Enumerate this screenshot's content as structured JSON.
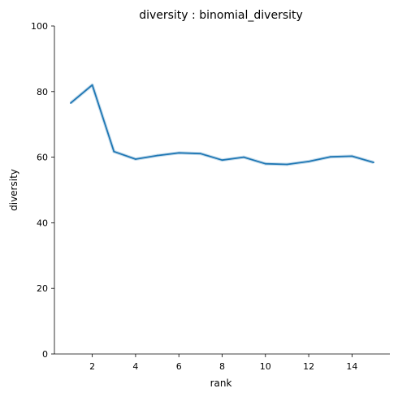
{
  "chart_data": {
    "type": "line",
    "title": "diversity : binomial_diversity",
    "xlabel": "rank",
    "ylabel": "diversity",
    "xlim": [
      0.25,
      15.75
    ],
    "ylim": [
      0,
      100
    ],
    "xticks": [
      2,
      4,
      6,
      8,
      10,
      12,
      14
    ],
    "yticks": [
      0,
      20,
      40,
      60,
      80,
      100
    ],
    "grid": false,
    "series": [
      {
        "color": "#1f77b4",
        "x": [
          1,
          2,
          3,
          4,
          5,
          6,
          7,
          8,
          9,
          10,
          11,
          12,
          13,
          14,
          15
        ],
        "y": [
          76.5,
          82.0,
          61.7,
          59.4,
          60.5,
          61.3,
          61.1,
          59.1,
          60.0,
          58.0,
          57.8,
          58.7,
          60.1,
          60.3,
          58.4
        ]
      }
    ]
  }
}
